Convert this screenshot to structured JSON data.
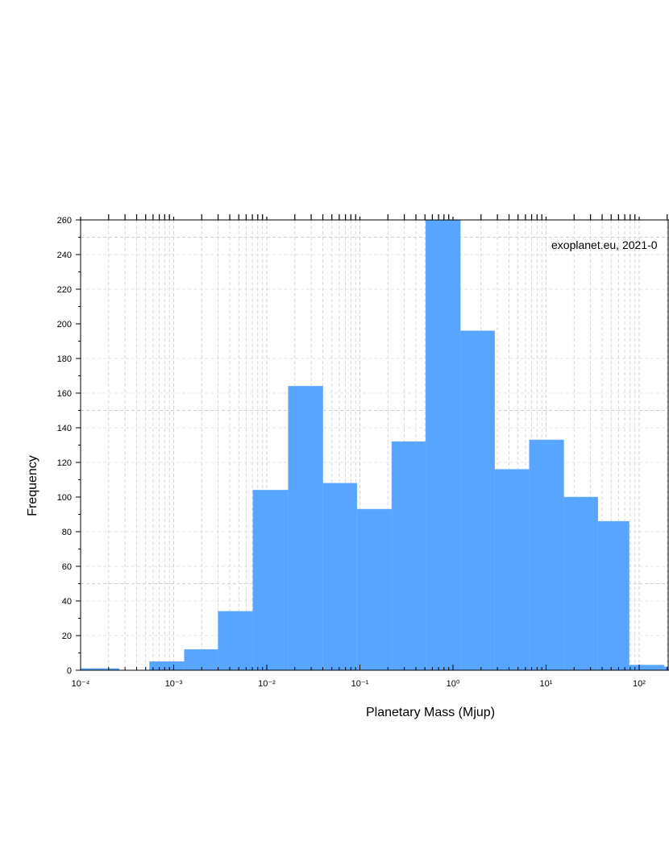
{
  "chart_data": {
    "type": "bar",
    "xscale": "log",
    "xlabel": "Planetary Mass (Mjup)",
    "ylabel": "Frequency",
    "xlim": [
      0.0001,
      200
    ],
    "ylim": [
      0,
      260
    ],
    "grid": true,
    "bar_color": "#58a5ff",
    "annotation": "exoplanet.eu, 2021-0",
    "x_ticks": [
      {
        "value": 0.0001,
        "label": "10⁻⁴"
      },
      {
        "value": 0.001,
        "label": "10⁻³"
      },
      {
        "value": 0.01,
        "label": "10⁻²"
      },
      {
        "value": 0.1,
        "label": "10⁻¹"
      },
      {
        "value": 1,
        "label": "10⁰"
      },
      {
        "value": 10,
        "label": "10¹"
      },
      {
        "value": 100,
        "label": "10²"
      }
    ],
    "y_ticks": [
      0,
      20,
      40,
      60,
      80,
      100,
      120,
      140,
      160,
      180,
      200,
      220,
      240,
      260
    ],
    "bins": [
      {
        "x0": 0.0001,
        "x1": 0.00026,
        "count": 1
      },
      {
        "x0": 0.00026,
        "x1": 0.00055,
        "count": 0
      },
      {
        "x0": 0.00055,
        "x1": 0.0013,
        "count": 5
      },
      {
        "x0": 0.0013,
        "x1": 0.003,
        "count": 12
      },
      {
        "x0": 0.003,
        "x1": 0.0071,
        "count": 34
      },
      {
        "x0": 0.0071,
        "x1": 0.017,
        "count": 104
      },
      {
        "x0": 0.017,
        "x1": 0.04,
        "count": 164
      },
      {
        "x0": 0.04,
        "x1": 0.093,
        "count": 108
      },
      {
        "x0": 0.093,
        "x1": 0.22,
        "count": 93
      },
      {
        "x0": 0.22,
        "x1": 0.51,
        "count": 132
      },
      {
        "x0": 0.51,
        "x1": 1.2,
        "count": 260
      },
      {
        "x0": 1.2,
        "x1": 2.8,
        "count": 196
      },
      {
        "x0": 2.8,
        "x1": 6.6,
        "count": 116
      },
      {
        "x0": 6.6,
        "x1": 15.5,
        "count": 133
      },
      {
        "x0": 15.5,
        "x1": 36,
        "count": 100
      },
      {
        "x0": 36,
        "x1": 78,
        "count": 86
      },
      {
        "x0": 78,
        "x1": 185,
        "count": 3
      },
      {
        "x0": 185,
        "x1": 200,
        "count": 2
      }
    ]
  }
}
